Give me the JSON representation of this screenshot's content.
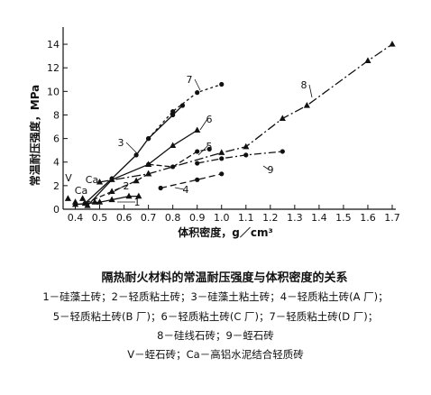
{
  "chart_data": {
    "type": "line",
    "title": "",
    "xlabel": "体积密度，g／cm³",
    "ylabel": "常温耐压强度，MPa",
    "xlim": [
      0.35,
      1.7
    ],
    "ylim": [
      0,
      15
    ],
    "x_ticks": [
      "0.4",
      "0.5",
      "0.6",
      "0.7",
      "0.8",
      "0.9",
      "1.0",
      "1.1",
      "1.2",
      "1.3",
      "1.4",
      "1.5",
      "1.6",
      "1.7"
    ],
    "y_ticks": [
      "0",
      "2",
      "4",
      "6",
      "8",
      "10",
      "12",
      "14"
    ],
    "grid": false,
    "series": [
      {
        "name": "1",
        "points": [
          [
            0.4,
            0.4
          ],
          [
            0.5,
            0.6
          ],
          [
            0.55,
            0.8
          ],
          [
            0.62,
            1.1
          ],
          [
            0.66,
            1.1
          ]
        ]
      },
      {
        "name": "2",
        "points": [
          [
            0.44,
            0.5
          ],
          [
            0.55,
            1.5
          ],
          [
            0.65,
            2.4
          ],
          [
            0.7,
            3.0
          ]
        ]
      },
      {
        "name": "3",
        "points": [
          [
            0.44,
            0.5
          ],
          [
            0.55,
            2.6
          ],
          [
            0.65,
            4.6
          ],
          [
            0.7,
            6.0
          ],
          [
            0.8,
            8.0
          ],
          [
            0.84,
            8.8
          ]
        ]
      },
      {
        "name": "4",
        "points": [
          [
            0.75,
            1.8
          ],
          [
            0.9,
            2.5
          ],
          [
            1.0,
            3.0
          ]
        ]
      },
      {
        "name": "5",
        "points": [
          [
            0.7,
            3.8
          ],
          [
            0.8,
            3.6
          ],
          [
            0.9,
            4.9
          ],
          [
            0.95,
            5.1
          ]
        ]
      },
      {
        "name": "6",
        "points": [
          [
            0.45,
            0.3
          ],
          [
            0.55,
            2.5
          ],
          [
            0.7,
            3.8
          ],
          [
            0.8,
            5.4
          ],
          [
            0.9,
            6.7
          ]
        ]
      },
      {
        "name": "7",
        "points": [
          [
            0.7,
            6.0
          ],
          [
            0.8,
            8.3
          ],
          [
            0.9,
            9.9
          ],
          [
            1.0,
            10.6
          ]
        ]
      },
      {
        "name": "8",
        "points": [
          [
            0.5,
            2.3
          ],
          [
            0.7,
            3.0
          ],
          [
            1.0,
            4.8
          ],
          [
            1.1,
            5.3
          ],
          [
            1.25,
            7.7
          ],
          [
            1.35,
            8.8
          ],
          [
            1.6,
            12.6
          ],
          [
            1.7,
            14.0
          ]
        ]
      },
      {
        "name": "9",
        "points": [
          [
            0.9,
            3.9
          ],
          [
            1.0,
            4.3
          ],
          [
            1.1,
            4.6
          ],
          [
            1.25,
            4.9
          ]
        ]
      }
    ],
    "standalone_points": [
      {
        "name": "V",
        "points": [
          [
            0.37,
            0.9
          ],
          [
            0.43,
            0.9
          ]
        ]
      },
      {
        "name": "Ca",
        "points": [
          [
            0.4,
            0.6
          ],
          [
            0.48,
            0.6
          ]
        ]
      }
    ],
    "point_labels": [
      "V",
      "Ca",
      "Ca"
    ]
  },
  "caption": {
    "title": "隔热耐火材料的常温耐压强度与体积密度的关系",
    "legend_lines": [
      "1－硅藻土砖；2－轻质粘土砖；3－硅藻土粘土砖；4－轻质粘土砖(A 厂)；",
      "5－轻质粘土砖(B 厂)；6－轻质粘土砖(C 厂)；7－轻质粘土砖(D 厂)；",
      "8－硅线石砖；9－蛭石砖",
      "V－蛭石砖；Ca－高铝水泥结合轻质砖"
    ]
  }
}
